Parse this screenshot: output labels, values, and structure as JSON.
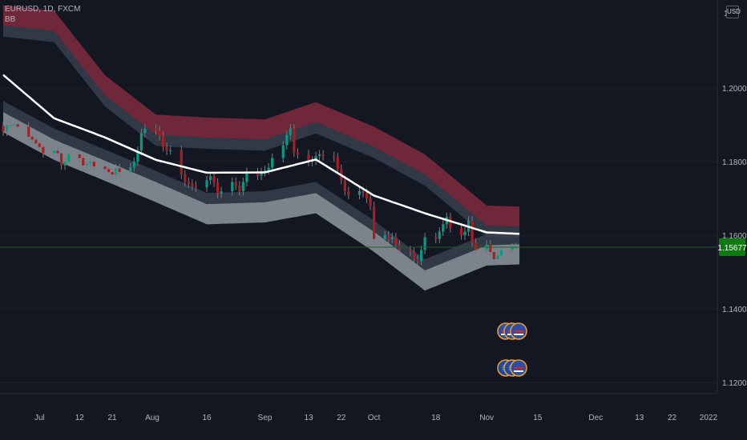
{
  "header": {
    "symbol": "EURUSD, 1D, FXCM",
    "indicator": "BB",
    "currency": "USD"
  },
  "price_label": "1.15677",
  "colors": {
    "background": "#131722",
    "bull": "#089981",
    "bear": "#a51f25",
    "upper_band": "#7a2a3d",
    "lower_band": "#8f979c",
    "basis": "#ffffff",
    "price_line": "#1e5c28",
    "price_label_bg": "#0d7a12"
  },
  "events": {
    "icons": [
      "us-flag-icon",
      "us-flag-icon",
      "us-flag-icon",
      "eu-flag-icon",
      "eu-flag-icon",
      "us-flag-icon"
    ]
  },
  "chart_data": {
    "type": "candlestick",
    "title": "",
    "xlabel": "",
    "ylabel": "",
    "ylim": [
      1.117,
      1.2235
    ],
    "y_ticks": [
      "1.20000",
      "1.18000",
      "1.16000",
      "1.14000",
      "1.12000"
    ],
    "y_tick_values": [
      1.2,
      1.18,
      1.16,
      1.14,
      1.12
    ],
    "top_partial_tick": "1.2",
    "x_ticks": [
      "Jul",
      "12",
      "21",
      "Aug",
      "16",
      "Sep",
      "13",
      "22",
      "Oct",
      "18",
      "Nov",
      "15",
      "Dec",
      "13",
      "22",
      "2022"
    ],
    "x_tick_dates": [
      "2021-07-01",
      "2021-07-12",
      "2021-07-21",
      "2021-08-01",
      "2021-08-16",
      "2021-09-01",
      "2021-09-13",
      "2021-09-22",
      "2021-10-01",
      "2021-10-18",
      "2021-11-01",
      "2021-11-15",
      "2021-12-01",
      "2021-12-13",
      "2021-12-22",
      "2022-01-01"
    ],
    "last_price": 1.15677,
    "close_dates": [
      "2021-06-21",
      "2021-06-22",
      "2021-06-23",
      "2021-06-24",
      "2021-06-25",
      "2021-06-28",
      "2021-06-29",
      "2021-06-30",
      "2021-07-01",
      "2021-07-02",
      "2021-07-05",
      "2021-07-06",
      "2021-07-07",
      "2021-07-08",
      "2021-07-09",
      "2021-07-12",
      "2021-07-13",
      "2021-07-14",
      "2021-07-15",
      "2021-07-16",
      "2021-07-19",
      "2021-07-20",
      "2021-07-21",
      "2021-07-22",
      "2021-07-23",
      "2021-07-26",
      "2021-07-27",
      "2021-07-28",
      "2021-07-29",
      "2021-07-30",
      "2021-08-02",
      "2021-08-03",
      "2021-08-04",
      "2021-08-05",
      "2021-08-06",
      "2021-08-09",
      "2021-08-10",
      "2021-08-11",
      "2021-08-12",
      "2021-08-13",
      "2021-08-16",
      "2021-08-17",
      "2021-08-18",
      "2021-08-19",
      "2021-08-20",
      "2021-08-23",
      "2021-08-24",
      "2021-08-25",
      "2021-08-26",
      "2021-08-27",
      "2021-08-30",
      "2021-08-31",
      "2021-09-01",
      "2021-09-02",
      "2021-09-03",
      "2021-09-06",
      "2021-09-07",
      "2021-09-08",
      "2021-09-09",
      "2021-09-10",
      "2021-09-13",
      "2021-09-14",
      "2021-09-15",
      "2021-09-16",
      "2021-09-17",
      "2021-09-20",
      "2021-09-21",
      "2021-09-22",
      "2021-09-23",
      "2021-09-24",
      "2021-09-27",
      "2021-09-28",
      "2021-09-29",
      "2021-09-30",
      "2021-10-01",
      "2021-10-04",
      "2021-10-05",
      "2021-10-06",
      "2021-10-07",
      "2021-10-08",
      "2021-10-11",
      "2021-10-12",
      "2021-10-13",
      "2021-10-14",
      "2021-10-15",
      "2021-10-18",
      "2021-10-19",
      "2021-10-20",
      "2021-10-21",
      "2021-10-22",
      "2021-10-25",
      "2021-10-26",
      "2021-10-27",
      "2021-10-28",
      "2021-10-29",
      "2021-11-01",
      "2021-11-02",
      "2021-11-03",
      "2021-11-04",
      "2021-11-05",
      "2021-11-08",
      "2021-11-09"
    ],
    "close": [
      1.1882,
      1.19,
      1.19,
      1.1902,
      1.1895,
      1.1868,
      1.186,
      1.185,
      1.184,
      1.1823,
      1.183,
      1.1823,
      1.179,
      1.18,
      1.182,
      1.181,
      1.179,
      1.1795,
      1.18,
      1.1787,
      1.178,
      1.1772,
      1.1765,
      1.1782,
      1.1772,
      1.1785,
      1.18,
      1.183,
      1.1878,
      1.189,
      1.1885,
      1.187,
      1.184,
      1.1831,
      1.1831,
      1.1765,
      1.1745,
      1.174,
      1.1735,
      1.173,
      1.175,
      1.176,
      1.1743,
      1.1713,
      1.172,
      1.1745,
      1.1735,
      1.172,
      1.1745,
      1.1772,
      1.1762,
      1.1772,
      1.1777,
      1.1784,
      1.181,
      1.1845,
      1.1872,
      1.189,
      1.1825,
      1.182,
      1.18,
      1.1803,
      1.1815,
      1.182,
      1.1815,
      1.1812,
      1.178,
      1.175,
      1.172,
      1.171,
      1.172,
      1.1715,
      1.17,
      1.168,
      1.159,
      1.16,
      1.159,
      1.1595,
      1.1575,
      1.156,
      1.1555,
      1.1535,
      1.153,
      1.156,
      1.1595,
      1.159,
      1.161,
      1.163,
      1.165,
      1.162,
      1.16,
      1.161,
      1.164,
      1.158,
      1.156,
      1.1575,
      1.1555,
      1.1535,
      1.1545,
      1.156,
      1.1567,
      1.1568
    ],
    "series": [
      {
        "name": "BB",
        "dates": [
          "2021-06-21",
          "2021-07-05",
          "2021-07-19",
          "2021-08-02",
          "2021-08-16",
          "2021-09-01",
          "2021-09-15",
          "2021-10-01",
          "2021-10-15",
          "2021-11-01",
          "2021-11-10"
        ],
        "basis": [
          1.2036,
          1.1918,
          1.1866,
          1.1805,
          1.177,
          1.1771,
          1.1806,
          1.1708,
          1.166,
          1.1608,
          1.1604
        ],
        "upper": [
          1.2225,
          1.221,
          1.2035,
          1.1928,
          1.192,
          1.1915,
          1.1962,
          1.1895,
          1.182,
          1.1681,
          1.1678
        ],
        "lower": [
          1.188,
          1.1805,
          1.1748,
          1.169,
          1.163,
          1.1635,
          1.166,
          1.1555,
          1.145,
          1.1518,
          1.1521
        ]
      }
    ]
  }
}
